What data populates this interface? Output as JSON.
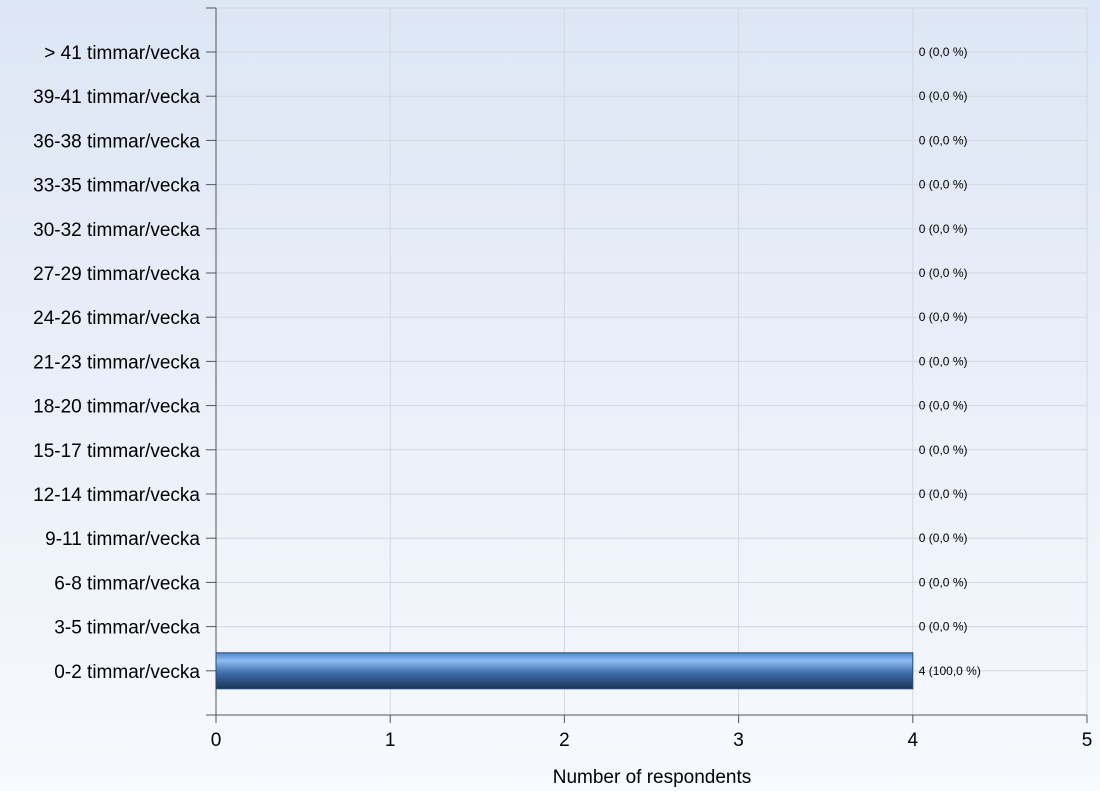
{
  "chart_data": {
    "type": "bar",
    "orientation": "horizontal",
    "categories": [
      "> 41 timmar/vecka",
      "39-41 timmar/vecka",
      "36-38 timmar/vecka",
      "33-35 timmar/vecka",
      "30-32 timmar/vecka",
      "27-29 timmar/vecka",
      "24-26 timmar/vecka",
      "21-23 timmar/vecka",
      "18-20 timmar/vecka",
      "15-17 timmar/vecka",
      "12-14 timmar/vecka",
      "9-11 timmar/vecka",
      "6-8 timmar/vecka",
      "3-5 timmar/vecka",
      "0-2 timmar/vecka"
    ],
    "values": [
      0,
      0,
      0,
      0,
      0,
      0,
      0,
      0,
      0,
      0,
      0,
      0,
      0,
      0,
      4
    ],
    "data_labels": [
      "0 (0,0 %)",
      "0 (0,0 %)",
      "0 (0,0 %)",
      "0 (0,0 %)",
      "0 (0,0 %)",
      "0 (0,0 %)",
      "0 (0,0 %)",
      "0 (0,0 %)",
      "0 (0,0 %)",
      "0 (0,0 %)",
      "0 (0,0 %)",
      "0 (0,0 %)",
      "0 (0,0 %)",
      "0 (0,0 %)",
      "4 (100,0 %)"
    ],
    "xlabel": "Number of respondents",
    "xticks": [
      "0",
      "1",
      "2",
      "3",
      "4",
      "5"
    ],
    "xlim": [
      0,
      5
    ],
    "grid": true,
    "colors": {
      "bar_light": "#8fbcf2",
      "bar_mid": "#4a7fc4",
      "bar_dark": "#1c3456",
      "grid": "#d3d8e0",
      "axis": "#555555"
    }
  }
}
